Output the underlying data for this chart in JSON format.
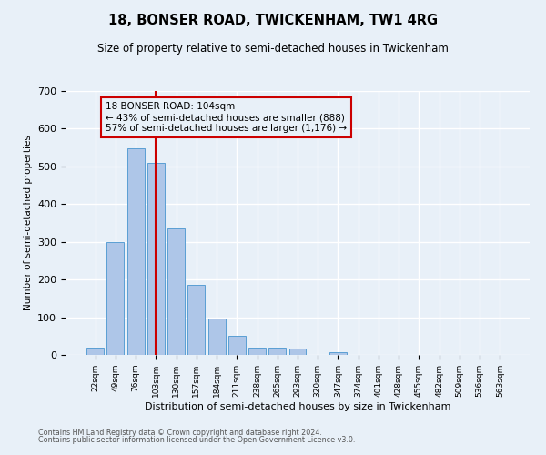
{
  "title": "18, BONSER ROAD, TWICKENHAM, TW1 4RG",
  "subtitle": "Size of property relative to semi-detached houses in Twickenham",
  "xlabel": "Distribution of semi-detached houses by size in Twickenham",
  "ylabel": "Number of semi-detached properties",
  "footnote1": "Contains HM Land Registry data © Crown copyright and database right 2024.",
  "footnote2": "Contains public sector information licensed under the Open Government Licence v3.0.",
  "annotation_line1": "18 BONSER ROAD: 104sqm",
  "annotation_line2": "← 43% of semi-detached houses are smaller (888)",
  "annotation_line3": "57% of semi-detached houses are larger (1,176) →",
  "bar_labels": [
    "22sqm",
    "49sqm",
    "76sqm",
    "103sqm",
    "130sqm",
    "157sqm",
    "184sqm",
    "211sqm",
    "238sqm",
    "265sqm",
    "293sqm",
    "320sqm",
    "347sqm",
    "374sqm",
    "401sqm",
    "428sqm",
    "455sqm",
    "482sqm",
    "509sqm",
    "536sqm",
    "563sqm"
  ],
  "bar_values": [
    20,
    300,
    548,
    510,
    335,
    185,
    97,
    50,
    20,
    20,
    17,
    0,
    8,
    0,
    0,
    0,
    0,
    0,
    0,
    0,
    0
  ],
  "bar_color": "#aec6e8",
  "bar_edge_color": "#5a9fd4",
  "property_bin_index": 3,
  "vline_color": "#cc0000",
  "background_color": "#e8f0f8",
  "grid_color": "#ffffff",
  "ylim": [
    0,
    700
  ],
  "yticks": [
    0,
    100,
    200,
    300,
    400,
    500,
    600,
    700
  ]
}
